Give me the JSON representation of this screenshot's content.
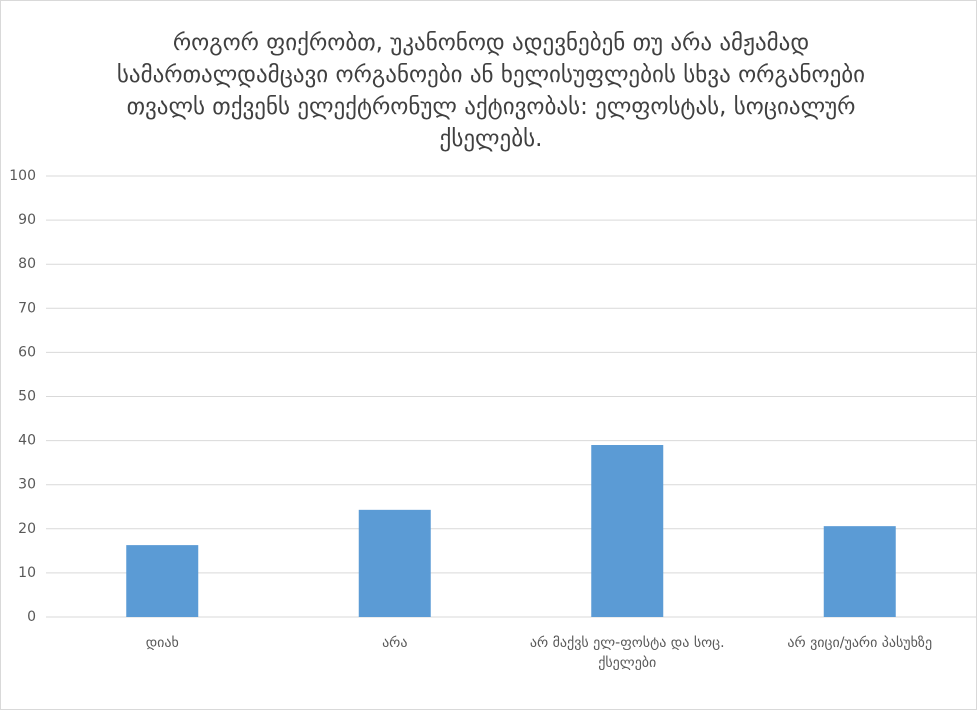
{
  "chart_data": {
    "type": "bar",
    "title": "როგორ ფიქრობთ, უკანონოდ ადევნებენ თუ არა ამჟამად სამართალდამცავი ორგანოები ან ხელისუფლების სხვა ორგანოები თვალს თქვენს ელექტრონულ აქტივობას: ელფოსტას, სოციალურ ქსელებს.",
    "categories": [
      "დიახ",
      "არა",
      "არ მაქვს ელ-ფოსტა და სოც. ქსელები",
      "არ ვიცი/უარი პასუხზე"
    ],
    "values": [
      16.3,
      24.3,
      39.0,
      20.6
    ],
    "color": "#5b9bd5",
    "ylim": [
      0,
      100
    ],
    "yticks": [
      0,
      10,
      20,
      30,
      40,
      50,
      60,
      70,
      80,
      90,
      100
    ],
    "grid": true
  }
}
